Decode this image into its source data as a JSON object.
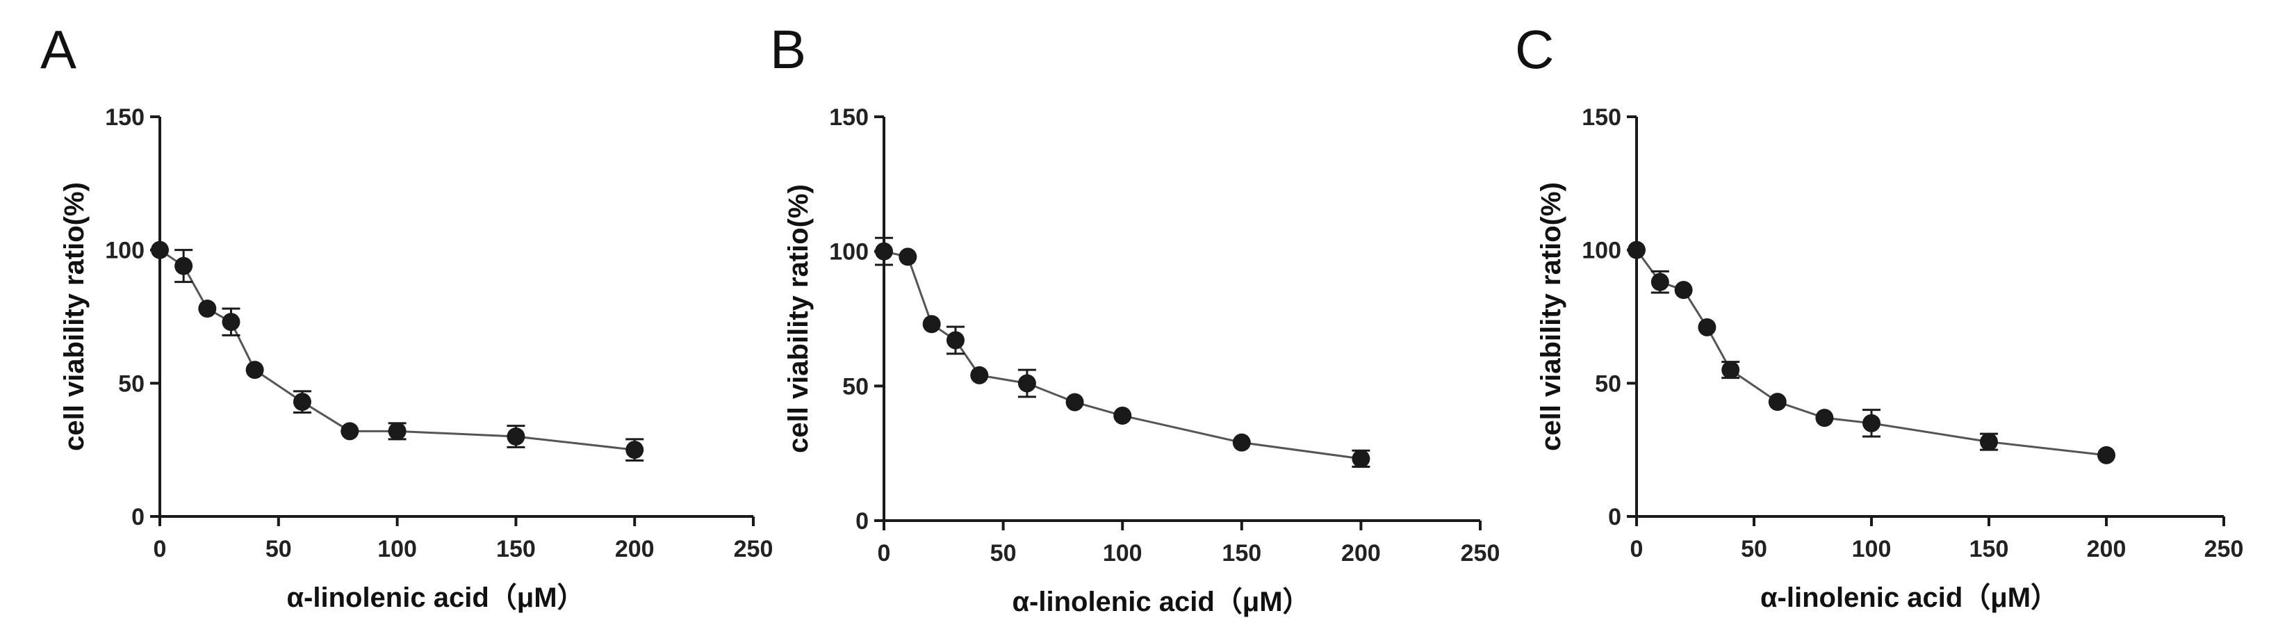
{
  "colors": {
    "ink": "#1a1a1a",
    "line": "#555555",
    "background": "#ffffff"
  },
  "chart_data": [
    {
      "panel_label": "A",
      "type": "line",
      "xlabel": "α-linolenic acid（μM）",
      "ylabel": "cell viability ratio(%)",
      "xlim": [
        0,
        250
      ],
      "ylim": [
        0,
        150
      ],
      "xticks": [
        "0",
        "50",
        "100",
        "150",
        "200",
        "250"
      ],
      "yticks": [
        "0",
        "50",
        "100",
        "150"
      ],
      "grid": false,
      "series": [
        {
          "x": [
            0,
            10,
            20,
            30,
            40,
            60,
            80,
            100,
            150,
            200
          ],
          "y": [
            100,
            94,
            78,
            73,
            55,
            43,
            32,
            32,
            30,
            25
          ],
          "err": [
            1,
            6,
            1,
            5,
            1,
            4,
            1,
            3,
            4,
            4
          ]
        }
      ]
    },
    {
      "panel_label": "B",
      "type": "line",
      "xlabel": "α-linolenic acid（μM）",
      "ylabel": "cell viability ratio(%)",
      "xlim": [
        0,
        250
      ],
      "ylim": [
        0,
        150
      ],
      "xticks": [
        "0",
        "50",
        "100",
        "150",
        "200",
        "250"
      ],
      "yticks": [
        "0",
        "50",
        "100",
        "150"
      ],
      "grid": false,
      "series": [
        {
          "x": [
            0,
            10,
            20,
            30,
            40,
            60,
            80,
            100,
            150,
            200
          ],
          "y": [
            100,
            98,
            73,
            67,
            54,
            51,
            44,
            39,
            29,
            23
          ],
          "err": [
            5,
            1,
            1,
            5,
            1,
            5,
            1,
            1,
            1,
            3
          ]
        }
      ]
    },
    {
      "panel_label": "C",
      "type": "line",
      "xlabel": "α-linolenic acid（μM）",
      "ylabel": "cell viability ratio(%)",
      "xlim": [
        0,
        250
      ],
      "ylim": [
        0,
        150
      ],
      "xticks": [
        "0",
        "50",
        "100",
        "150",
        "200",
        "250"
      ],
      "yticks": [
        "0",
        "50",
        "100",
        "150"
      ],
      "grid": false,
      "series": [
        {
          "x": [
            0,
            10,
            20,
            30,
            40,
            60,
            80,
            100,
            150,
            200
          ],
          "y": [
            100,
            88,
            85,
            71,
            55,
            43,
            37,
            35,
            28,
            23
          ],
          "err": [
            1,
            4,
            1,
            1,
            3,
            1,
            1,
            5,
            3,
            1
          ]
        }
      ]
    }
  ]
}
